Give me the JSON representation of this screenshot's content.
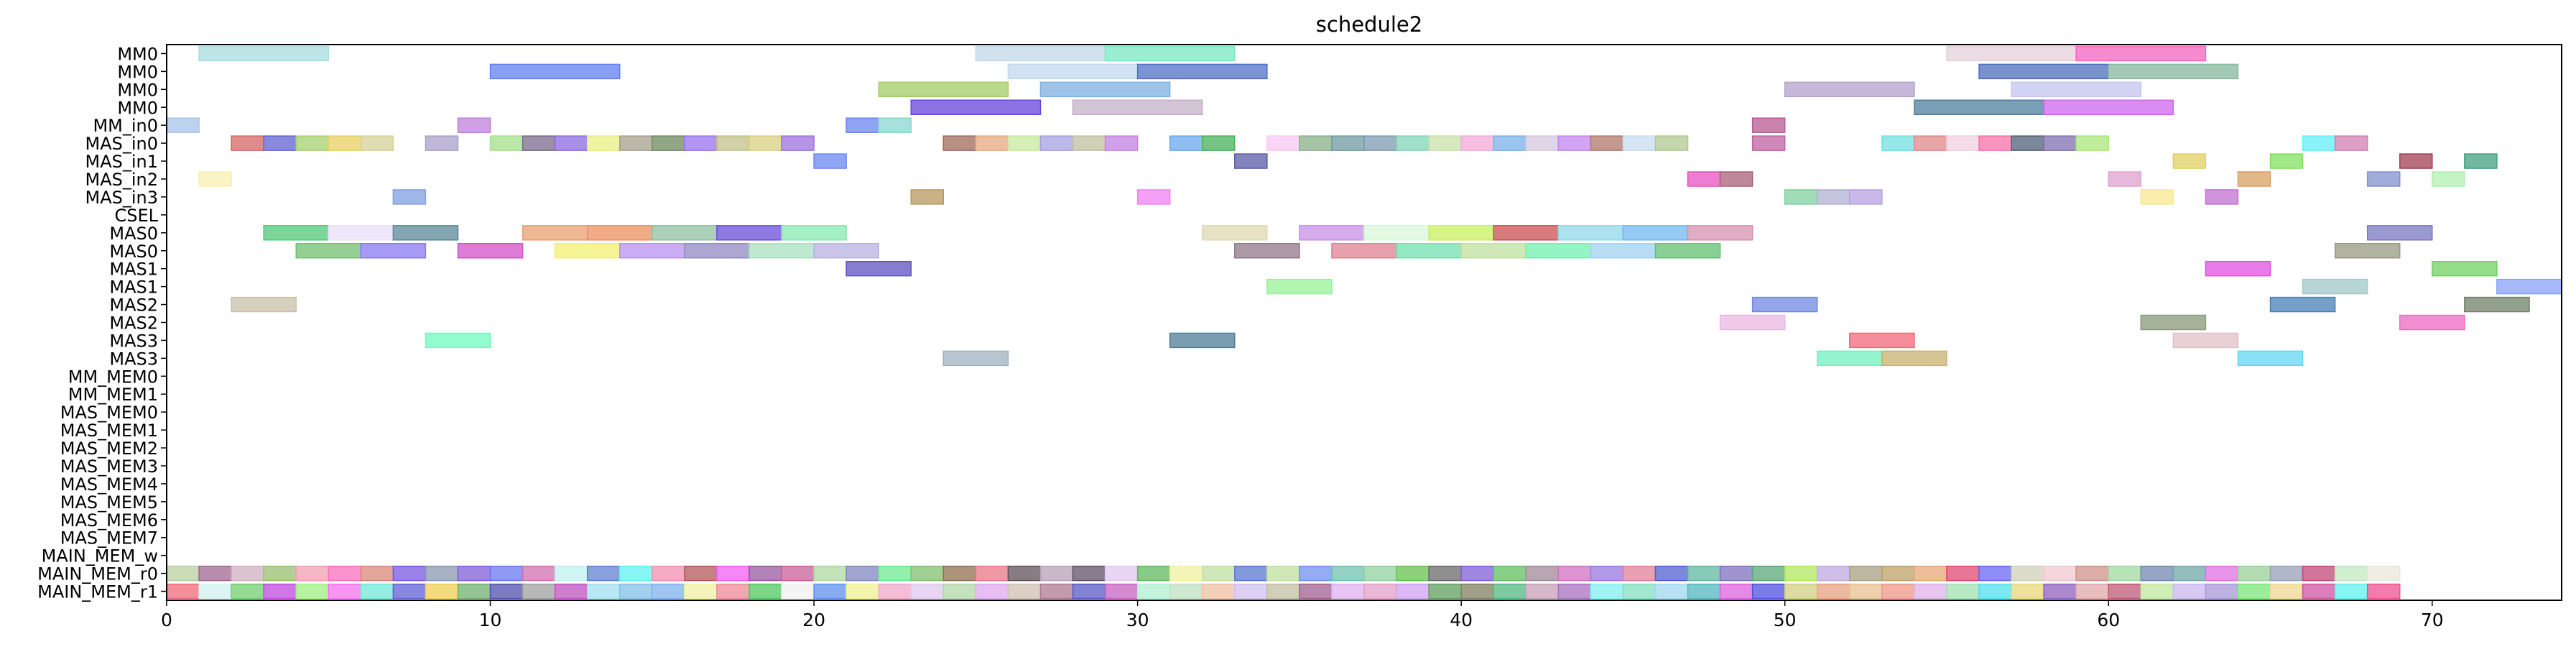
{
  "chart_data": {
    "type": "gantt",
    "title": "schedule2",
    "xlabel": "",
    "ylabel": "",
    "xlim": [
      0,
      74
    ],
    "x_ticks": [
      0,
      10,
      20,
      30,
      40,
      50,
      60,
      70
    ],
    "grid": false,
    "rows": [
      "MM0",
      "MM0",
      "MM0",
      "MM0",
      "MM_in0",
      "MAS_in0",
      "MAS_in1",
      "MAS_in2",
      "MAS_in3",
      "CSEL",
      "MAS0",
      "MAS0",
      "MAS1",
      "MAS1",
      "MAS2",
      "MAS2",
      "MAS3",
      "MAS3",
      "MM_MEM0",
      "MM_MEM1",
      "MAS_MEM0",
      "MAS_MEM1",
      "MAS_MEM2",
      "MAS_MEM3",
      "MAS_MEM4",
      "MAS_MEM5",
      "MAS_MEM6",
      "MAS_MEM7",
      "MAIN_MEM_w",
      "MAIN_MEM_r0",
      "MAIN_MEM_r1"
    ],
    "tasks": [
      {
        "row": 0,
        "start": 1,
        "end": 5,
        "color": "#a8dede"
      },
      {
        "row": 0,
        "start": 25,
        "end": 29,
        "color": "#c2d8ea"
      },
      {
        "row": 0,
        "start": 29,
        "end": 33,
        "color": "#7ae8c2"
      },
      {
        "row": 0,
        "start": 55,
        "end": 59,
        "color": "#e6d0dc"
      },
      {
        "row": 0,
        "start": 59,
        "end": 63,
        "color": "#f464c0"
      },
      {
        "row": 1,
        "start": 10,
        "end": 14,
        "color": "#5f80f2"
      },
      {
        "row": 1,
        "start": 26,
        "end": 30,
        "color": "#c2d8ee"
      },
      {
        "row": 1,
        "start": 30,
        "end": 34,
        "color": "#5070c8"
      },
      {
        "row": 1,
        "start": 56,
        "end": 60,
        "color": "#4c6cbc"
      },
      {
        "row": 1,
        "start": 60,
        "end": 64,
        "color": "#86b89c"
      },
      {
        "row": 2,
        "start": 22,
        "end": 26,
        "color": "#a4cc66"
      },
      {
        "row": 2,
        "start": 27,
        "end": 31,
        "color": "#7eb0e0"
      },
      {
        "row": 2,
        "start": 50,
        "end": 54,
        "color": "#b4a0cc"
      },
      {
        "row": 2,
        "start": 57,
        "end": 61,
        "color": "#c4c4f0"
      },
      {
        "row": 3,
        "start": 23,
        "end": 27,
        "color": "#6644dc"
      },
      {
        "row": 3,
        "start": 28,
        "end": 32,
        "color": "#c4b0c8"
      },
      {
        "row": 3,
        "start": 54,
        "end": 58,
        "color": "#4e7e9c"
      },
      {
        "row": 3,
        "start": 58,
        "end": 62,
        "color": "#cc66ee"
      },
      {
        "row": 4,
        "start": 0,
        "end": 1,
        "color": "#a6c4ea"
      },
      {
        "row": 4,
        "start": 21,
        "end": 22,
        "color": "#6a86ee"
      },
      {
        "row": 4,
        "start": 22,
        "end": 23,
        "color": "#8ad6d0"
      },
      {
        "row": 4,
        "start": 49,
        "end": 50,
        "color": "#b85a90"
      },
      {
        "row": 5,
        "start": 2,
        "end": 3,
        "color": "#d86464"
      },
      {
        "row": 5,
        "start": 3,
        "end": 4,
        "color": "#6262d6"
      },
      {
        "row": 5,
        "start": 4,
        "end": 5,
        "color": "#a6d070"
      },
      {
        "row": 5,
        "start": 5,
        "end": 6,
        "color": "#e8d060"
      },
      {
        "row": 5,
        "start": 6,
        "end": 7,
        "color": "#d6d09a"
      },
      {
        "row": 5,
        "start": 8,
        "end": 9,
        "color": "#a8a0c8"
      },
      {
        "row": 5,
        "start": 10,
        "end": 11,
        "color": "#a4e08c"
      },
      {
        "row": 5,
        "start": 11,
        "end": 12,
        "color": "#7a6a8c"
      },
      {
        "row": 5,
        "start": 12,
        "end": 13,
        "color": "#8e6ae0"
      },
      {
        "row": 5,
        "start": 13,
        "end": 14,
        "color": "#e8f080"
      },
      {
        "row": 5,
        "start": 14,
        "end": 15,
        "color": "#a6a08c"
      },
      {
        "row": 5,
        "start": 15,
        "end": 16,
        "color": "#6e8a5e"
      },
      {
        "row": 5,
        "start": 16,
        "end": 17,
        "color": "#9a72f0"
      },
      {
        "row": 5,
        "start": 17,
        "end": 18,
        "color": "#c2c08a"
      },
      {
        "row": 5,
        "start": 18,
        "end": 19,
        "color": "#d8d080"
      },
      {
        "row": 5,
        "start": 19,
        "end": 20,
        "color": "#9c72e0"
      },
      {
        "row": 5,
        "start": 24,
        "end": 25,
        "color": "#a06a5a"
      },
      {
        "row": 5,
        "start": 25,
        "end": 26,
        "color": "#e8a880"
      },
      {
        "row": 5,
        "start": 26,
        "end": 27,
        "color": "#c8e8a0"
      },
      {
        "row": 5,
        "start": 27,
        "end": 28,
        "color": "#a6a0e0"
      },
      {
        "row": 5,
        "start": 28,
        "end": 29,
        "color": "#c0c0a0"
      },
      {
        "row": 5,
        "start": 29,
        "end": 30,
        "color": "#c482e0"
      },
      {
        "row": 5,
        "start": 31,
        "end": 32,
        "color": "#6aa8f0"
      },
      {
        "row": 5,
        "start": 32,
        "end": 33,
        "color": "#46b25a"
      },
      {
        "row": 5,
        "start": 34,
        "end": 35,
        "color": "#f8c8f0"
      },
      {
        "row": 5,
        "start": 35,
        "end": 36,
        "color": "#8ab08a"
      },
      {
        "row": 5,
        "start": 36,
        "end": 37,
        "color": "#6e9aa0"
      },
      {
        "row": 5,
        "start": 37,
        "end": 38,
        "color": "#7e9ab0"
      },
      {
        "row": 5,
        "start": 38,
        "end": 39,
        "color": "#80d4b8"
      },
      {
        "row": 5,
        "start": 39,
        "end": 40,
        "color": "#c8e0a8"
      },
      {
        "row": 5,
        "start": 40,
        "end": 41,
        "color": "#f4a8d8"
      },
      {
        "row": 5,
        "start": 41,
        "end": 42,
        "color": "#7ab0e8"
      },
      {
        "row": 5,
        "start": 42,
        "end": 43,
        "color": "#d4c8e0"
      },
      {
        "row": 5,
        "start": 43,
        "end": 44,
        "color": "#c484f0"
      },
      {
        "row": 5,
        "start": 44,
        "end": 45,
        "color": "#b07868"
      },
      {
        "row": 5,
        "start": 45,
        "end": 46,
        "color": "#c8dcf0"
      },
      {
        "row": 5,
        "start": 46,
        "end": 47,
        "color": "#b0c890"
      },
      {
        "row": 5,
        "start": 53,
        "end": 54,
        "color": "#70e0e0"
      },
      {
        "row": 5,
        "start": 54,
        "end": 55,
        "color": "#e08888"
      },
      {
        "row": 5,
        "start": 55,
        "end": 56,
        "color": "#f0d0e0"
      },
      {
        "row": 5,
        "start": 56,
        "end": 57,
        "color": "#f870a8"
      },
      {
        "row": 5,
        "start": 57,
        "end": 58,
        "color": "#4e6078"
      },
      {
        "row": 5,
        "start": 58,
        "end": 59,
        "color": "#8070b0"
      },
      {
        "row": 5,
        "start": 59,
        "end": 60,
        "color": "#a8e878"
      },
      {
        "row": 6,
        "start": 20,
        "end": 21,
        "color": "#6a88f0"
      },
      {
        "row": 6,
        "start": 33,
        "end": 34,
        "color": "#5a5aa8"
      },
      {
        "row": 7,
        "start": 1,
        "end": 2,
        "color": "#f8f0b0"
      },
      {
        "row": 7,
        "start": 47,
        "end": 48,
        "color": "#e850c0"
      },
      {
        "row": 7,
        "start": 48,
        "end": 49,
        "color": "#a86078"
      },
      {
        "row": 8,
        "start": 7,
        "end": 8,
        "color": "#80a0e0"
      },
      {
        "row": 8,
        "start": 23,
        "end": 24,
        "color": "#b89860"
      },
      {
        "row": 8,
        "start": 30,
        "end": 31,
        "color": "#f080f0"
      },
      {
        "row": 8,
        "start": 50,
        "end": 51,
        "color": "#80d0a0"
      },
      {
        "row": 8,
        "start": 51,
        "end": 52,
        "color": "#b0b0d0"
      },
      {
        "row": 8,
        "start": 52,
        "end": 53,
        "color": "#b8a0e0"
      },
      {
        "row": 10,
        "start": 3,
        "end": 5,
        "color": "#50c878"
      },
      {
        "row": 10,
        "start": 5,
        "end": 7,
        "color": "#e8e0f8"
      },
      {
        "row": 10,
        "start": 7,
        "end": 9,
        "color": "#5a8898"
      },
      {
        "row": 10,
        "start": 11,
        "end": 13,
        "color": "#e8a070"
      },
      {
        "row": 10,
        "start": 13,
        "end": 15,
        "color": "#e89060"
      },
      {
        "row": 10,
        "start": 15,
        "end": 17,
        "color": "#90c0a0"
      },
      {
        "row": 10,
        "start": 17,
        "end": 19,
        "color": "#6a4ed8"
      },
      {
        "row": 10,
        "start": 19,
        "end": 21,
        "color": "#88e8b0"
      },
      {
        "row": 10,
        "start": 32,
        "end": 34,
        "color": "#e0d8b0"
      },
      {
        "row": 10,
        "start": 35,
        "end": 37,
        "color": "#c890e8"
      },
      {
        "row": 10,
        "start": 37,
        "end": 39,
        "color": "#d8f8d8"
      },
      {
        "row": 10,
        "start": 39,
        "end": 41,
        "color": "#c8f060"
      },
      {
        "row": 10,
        "start": 41,
        "end": 43,
        "color": "#c85050"
      },
      {
        "row": 10,
        "start": 43,
        "end": 45,
        "color": "#90d8e8"
      },
      {
        "row": 10,
        "start": 45,
        "end": 47,
        "color": "#70b8f0"
      },
      {
        "row": 10,
        "start": 47,
        "end": 49,
        "color": "#d890b0"
      },
      {
        "row": 10,
        "start": 68,
        "end": 70,
        "color": "#7878c0"
      },
      {
        "row": 11,
        "start": 4,
        "end": 6,
        "color": "#70c070"
      },
      {
        "row": 11,
        "start": 6,
        "end": 8,
        "color": "#8878f0"
      },
      {
        "row": 11,
        "start": 9,
        "end": 11,
        "color": "#d050c8"
      },
      {
        "row": 11,
        "start": 12,
        "end": 14,
        "color": "#f0f070"
      },
      {
        "row": 11,
        "start": 14,
        "end": 16,
        "color": "#b890f0"
      },
      {
        "row": 11,
        "start": 16,
        "end": 18,
        "color": "#9088c0"
      },
      {
        "row": 11,
        "start": 18,
        "end": 20,
        "color": "#a8e0c0"
      },
      {
        "row": 11,
        "start": 20,
        "end": 22,
        "color": "#b8b0e0"
      },
      {
        "row": 11,
        "start": 33,
        "end": 35,
        "color": "#907888"
      },
      {
        "row": 11,
        "start": 36,
        "end": 38,
        "color": "#e08090"
      },
      {
        "row": 11,
        "start": 38,
        "end": 40,
        "color": "#70e0b0"
      },
      {
        "row": 11,
        "start": 40,
        "end": 42,
        "color": "#c0e0a0"
      },
      {
        "row": 11,
        "start": 42,
        "end": 44,
        "color": "#70f0b0"
      },
      {
        "row": 11,
        "start": 44,
        "end": 46,
        "color": "#a0d0f0"
      },
      {
        "row": 11,
        "start": 46,
        "end": 48,
        "color": "#60c070"
      },
      {
        "row": 11,
        "start": 67,
        "end": 69,
        "color": "#989880"
      },
      {
        "row": 12,
        "start": 21,
        "end": 23,
        "color": "#6050c0"
      },
      {
        "row": 12,
        "start": 63,
        "end": 65,
        "color": "#e050e0"
      },
      {
        "row": 12,
        "start": 70,
        "end": 72,
        "color": "#70d060"
      },
      {
        "row": 13,
        "start": 34,
        "end": 36,
        "color": "#98f098"
      },
      {
        "row": 13,
        "start": 66,
        "end": 68,
        "color": "#a0c8c8"
      },
      {
        "row": 13,
        "start": 72,
        "end": 74,
        "color": "#88a0f8"
      },
      {
        "row": 14,
        "start": 2,
        "end": 4,
        "color": "#c8c0a8"
      },
      {
        "row": 14,
        "start": 49,
        "end": 51,
        "color": "#7088e0"
      },
      {
        "row": 14,
        "start": 65,
        "end": 67,
        "color": "#4880b8"
      },
      {
        "row": 14,
        "start": 71,
        "end": 73,
        "color": "#708068"
      },
      {
        "row": 15,
        "start": 48,
        "end": 50,
        "color": "#e8b8e0"
      },
      {
        "row": 15,
        "start": 61,
        "end": 63,
        "color": "#889878"
      },
      {
        "row": 15,
        "start": 69,
        "end": 71,
        "color": "#f068c0"
      },
      {
        "row": 16,
        "start": 8,
        "end": 10,
        "color": "#70f8c0"
      },
      {
        "row": 16,
        "start": 31,
        "end": 33,
        "color": "#4e7c98"
      },
      {
        "row": 16,
        "start": 52,
        "end": 54,
        "color": "#f06878"
      },
      {
        "row": 16,
        "start": 62,
        "end": 64,
        "color": "#e0c0c8"
      },
      {
        "row": 17,
        "start": 24,
        "end": 26,
        "color": "#a0b0c0"
      },
      {
        "row": 17,
        "start": 51,
        "end": 53,
        "color": "#70f0c0"
      },
      {
        "row": 17,
        "start": 53,
        "end": 55,
        "color": "#c8b070"
      },
      {
        "row": 17,
        "start": 64,
        "end": 66,
        "color": "#60d8f0"
      },
      {
        "row": 7,
        "start": 60,
        "end": 61,
        "color": "#e0a0d0"
      },
      {
        "row": 7,
        "start": 64,
        "end": 65,
        "color": "#d8a060"
      },
      {
        "row": 7,
        "start": 68,
        "end": 69,
        "color": "#8090d0"
      },
      {
        "row": 7,
        "start": 70,
        "end": 71,
        "color": "#b0f0b0"
      },
      {
        "row": 8,
        "start": 61,
        "end": 62,
        "color": "#f8e890"
      },
      {
        "row": 8,
        "start": 63,
        "end": 64,
        "color": "#c070d0"
      },
      {
        "row": 6,
        "start": 62,
        "end": 63,
        "color": "#e0d060"
      },
      {
        "row": 6,
        "start": 65,
        "end": 66,
        "color": "#80e060"
      },
      {
        "row": 5,
        "start": 49,
        "end": 50,
        "color": "#c060a0"
      },
      {
        "row": 5,
        "start": 66,
        "end": 67,
        "color": "#60f0f8"
      },
      {
        "row": 5,
        "start": 67,
        "end": 68,
        "color": "#d080b0"
      },
      {
        "row": 6,
        "start": 69,
        "end": 70,
        "color": "#a04050"
      },
      {
        "row": 6,
        "start": 71,
        "end": 72,
        "color": "#40a080"
      },
      {
        "row": 4,
        "start": 9,
        "end": 10,
        "color": "#c080d8"
      }
    ],
    "mem_rows": [
      {
        "row": 29,
        "colors": [
          "#b8d0a0",
          "#a06890",
          "#d0b0c0",
          "#98c070",
          "#f0a0b0",
          "#f870c0",
          "#d88878",
          "#7858e0",
          "#8898b0",
          "#8060d8",
          "#6878f0",
          "#d070b0",
          "#c0f0f0",
          "#6080d0",
          "#60f0f0",
          "#f090b0",
          "#b05858",
          "#f060f0",
          "#9858a0",
          "#c86098",
          "#b0d8a0",
          "#8088c0",
          "#70e890",
          "#80c070",
          "#907050",
          "#e87888",
          "#605058",
          "#b8a0b8",
          "#605068",
          "#e0c8f0",
          "#60b860",
          "#f0f0a0",
          "#c0e0a0",
          "#5878d0",
          "#c0e0a0",
          "#7090f0",
          "#70c0b0",
          "#90d0a0",
          "#68c050",
          "#6a6a6a",
          "#8060d8",
          "#60c060",
          "#a08898",
          "#d070c0",
          "#9878e0",
          "#e08098",
          "#5060d0",
          "#60b8a0",
          "#8070c0",
          "#58a878",
          "#b0e860",
          "#c0a8e0",
          "#a8a080",
          "#c0a068",
          "#e8a878",
          "#e04870",
          "#6868f0",
          "#d0d0b8",
          "#f0c8d0",
          "#d09088",
          "#a0d8a0",
          "#7088b0",
          "#70a8a8",
          "#e070e0",
          "#98d098",
          "#98a0b8",
          "#c04878",
          "#c0e8c0",
          "#e8e8d8"
        ]
      },
      {
        "row": 30,
        "colors": [
          "#f06878",
          "#d0f0f0",
          "#70d070",
          "#c048e0",
          "#a0f080",
          "#f870f0",
          "#70e8d8",
          "#6060d8",
          "#f0d050",
          "#70b070",
          "#5050b0",
          "#a0a0a0",
          "#c050c0",
          "#a0e0f0",
          "#80c0e8",
          "#80b0f0",
          "#f0f0a0",
          "#f08898",
          "#50c860",
          "#f0f0f0",
          "#6090f0",
          "#f0f090",
          "#f0a8c8",
          "#e0c8f0",
          "#b0d8a8",
          "#e0a8f0",
          "#d0c0b0",
          "#b07890",
          "#5858c8",
          "#c860c0",
          "#b0f0d0",
          "#c0e0c0",
          "#f0c0a0",
          "#d0c0f0",
          "#c0c0a0",
          "#a06090",
          "#e0b0f0",
          "#e0a0c8",
          "#d0a0f0",
          "#60a060",
          "#808060",
          "#50b880",
          "#c8a0b8",
          "#a870c0",
          "#80f0f0",
          "#80e0c0",
          "#a0d8f0",
          "#50b8c0",
          "#e060e0",
          "#5050e0",
          "#d0d080",
          "#e8a080",
          "#e8c090",
          "#f09888",
          "#e0b0e8",
          "#a0e0b0",
          "#50e0f0",
          "#e8d878",
          "#9060c0",
          "#e0a8a8",
          "#c05878",
          "#c0e8a0",
          "#c8b8f0",
          "#a898d8",
          "#78e878",
          "#f0d890",
          "#d050a0",
          "#60f0f0",
          "#f05090"
        ]
      }
    ]
  }
}
